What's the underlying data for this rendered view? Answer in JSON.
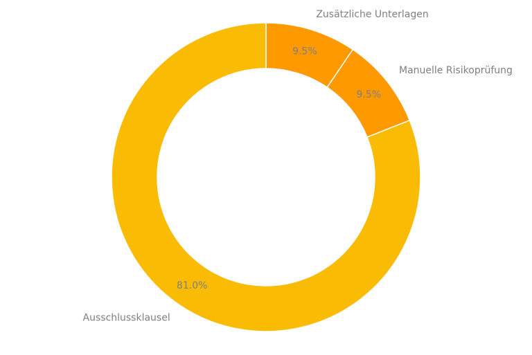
{
  "chart_data": {
    "type": "pie",
    "donut": true,
    "categories": [
      "Zusätzliche Unterlagen",
      "Manuelle Risikoprüfung",
      "Ausschlussklausel"
    ],
    "values": [
      9.5,
      9.5,
      81.0
    ],
    "value_labels": [
      "9.5%",
      "9.5%",
      "81.0%"
    ],
    "colors": [
      "#FF9900",
      "#FF9900",
      "#FABB05"
    ],
    "start": "top",
    "direction": "clockwise",
    "legend": "none"
  }
}
